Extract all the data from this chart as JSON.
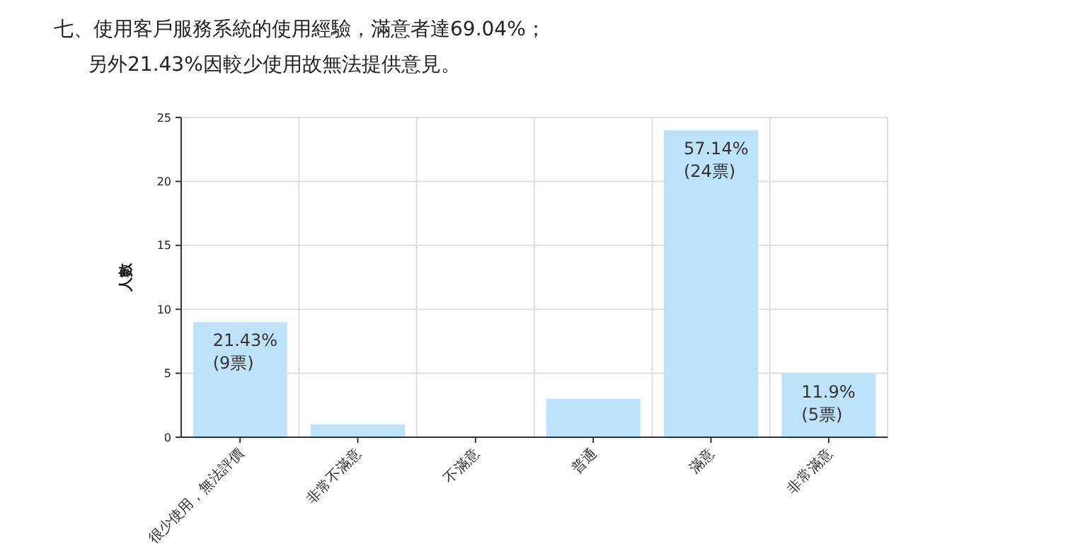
{
  "chart_data": {
    "type": "bar",
    "title": "七、使用客戶服務系統的使用經驗，滿意者達69.04%；",
    "subtitle": "另外21.43%因較少使用故無法提供意見。",
    "ylabel": "人數",
    "categories": [
      "很少使用，無法評價",
      "非常不滿意",
      "不滿意",
      "普通",
      "滿意",
      "非常滿意"
    ],
    "values": [
      9,
      1,
      0,
      3,
      24,
      5
    ],
    "color": "#bde3fb",
    "value_labels": [
      "21.43%\n(9票)",
      null,
      null,
      null,
      "57.14%\n(24票)",
      "11.9%\n(5票)"
    ],
    "ylim": [
      0,
      25
    ],
    "yticks": [
      0,
      5,
      10,
      15,
      20,
      25
    ],
    "grid": true
  }
}
